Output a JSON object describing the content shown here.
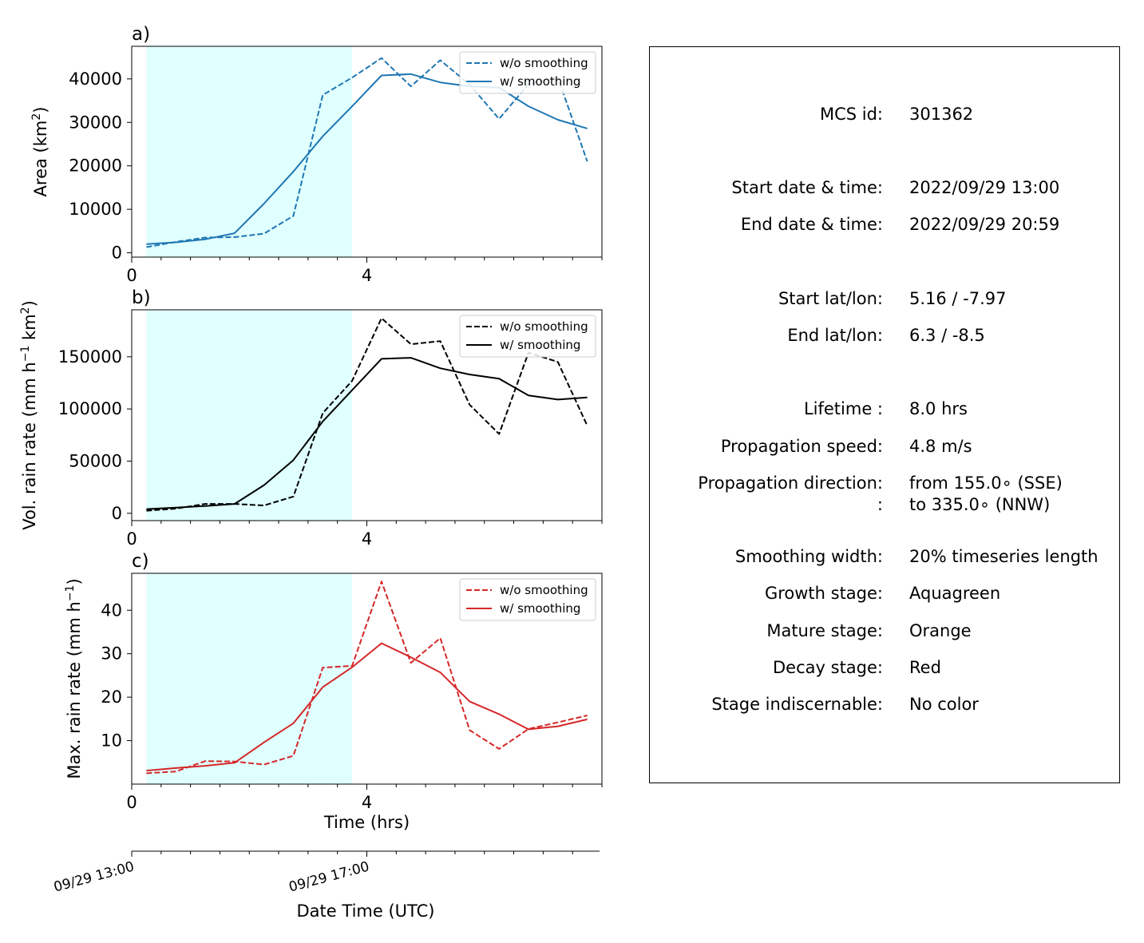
{
  "figure": {
    "panel_labels": [
      "a)",
      "b)",
      "c)"
    ],
    "time_axis_label": "Time (hrs)",
    "datetime_axis": {
      "label": "Date Time (UTC)",
      "tick_labels": [
        "09/29 13:00",
        "09/29 17:00"
      ]
    }
  },
  "colors": {
    "growth_shade": "#e0ffff",
    "area_series": "#1f77b4",
    "volume_series": "#000000",
    "max_series": "#d62728"
  },
  "chart_data": [
    {
      "type": "line",
      "panel": "a)",
      "ylabel": "Area  (km²)",
      "xlim": [
        0,
        8
      ],
      "ylim": [
        -1000,
        47500
      ],
      "x_ticks": [
        0,
        4
      ],
      "y_ticks": [
        0,
        10000,
        20000,
        30000,
        40000
      ],
      "shaded_x_range": [
        0.25,
        3.75
      ],
      "legend": "top-right",
      "series": [
        {
          "name": "w/o smoothing",
          "style": "dashed",
          "x": [
            0.25,
            0.75,
            1.25,
            1.75,
            2.25,
            2.75,
            3.25,
            3.75,
            4.25,
            4.75,
            5.25,
            5.75,
            6.25,
            6.75,
            7.25,
            7.75
          ],
          "y": [
            1300,
            2500,
            3500,
            3600,
            4400,
            8500,
            36300,
            40300,
            44800,
            38300,
            44300,
            38700,
            30800,
            38800,
            40300,
            21000
          ]
        },
        {
          "name": "w/ smoothing",
          "style": "solid",
          "x": [
            0.25,
            0.75,
            1.25,
            1.75,
            2.25,
            2.75,
            3.25,
            3.75,
            4.25,
            4.75,
            5.25,
            5.75,
            6.25,
            6.75,
            7.25,
            7.75
          ],
          "y": [
            2000,
            2400,
            3100,
            4500,
            11300,
            18700,
            26800,
            33700,
            40800,
            41100,
            39200,
            38300,
            38000,
            33700,
            30600,
            28600
          ]
        }
      ]
    },
    {
      "type": "line",
      "panel": "b)",
      "ylabel": "Vol. rain rate (mm h⁻¹ km²)",
      "xlim": [
        0,
        8
      ],
      "ylim": [
        -7000,
        195000
      ],
      "x_ticks": [
        0,
        4
      ],
      "y_ticks": [
        0,
        50000,
        100000,
        150000
      ],
      "shaded_x_range": [
        0.25,
        3.75
      ],
      "legend": "top-right",
      "series": [
        {
          "name": "w/o smoothing",
          "style": "dashed",
          "x": [
            0.25,
            0.75,
            1.25,
            1.75,
            2.25,
            2.75,
            3.25,
            3.75,
            4.25,
            4.75,
            5.25,
            5.75,
            6.25,
            6.75,
            7.25,
            7.75
          ],
          "y": [
            2500,
            4500,
            9000,
            9000,
            7500,
            16000,
            96000,
            127000,
            187000,
            162000,
            165000,
            104000,
            76000,
            154000,
            145000,
            84000
          ]
        },
        {
          "name": "w/ smoothing",
          "style": "solid",
          "x": [
            0.25,
            0.75,
            1.25,
            1.75,
            2.25,
            2.75,
            3.25,
            3.75,
            4.25,
            4.75,
            5.25,
            5.75,
            6.25,
            6.75,
            7.25,
            7.75
          ],
          "y": [
            4000,
            5500,
            7000,
            9000,
            27000,
            51000,
            88000,
            118000,
            148000,
            149000,
            139000,
            133000,
            129000,
            113000,
            109000,
            111000
          ]
        }
      ]
    },
    {
      "type": "line",
      "panel": "c)",
      "ylabel": "Max. rain rate  (mm h⁻¹)",
      "xlim": [
        0,
        8
      ],
      "ylim": [
        0,
        48.5
      ],
      "x_ticks": [
        0,
        4
      ],
      "y_ticks": [
        10,
        20,
        30,
        40
      ],
      "shaded_x_range": [
        0.25,
        3.75
      ],
      "legend": "top-right",
      "series": [
        {
          "name": "w/o smoothing",
          "style": "dashed",
          "x": [
            0.25,
            0.75,
            1.25,
            1.75,
            2.25,
            2.75,
            3.25,
            3.75,
            4.25,
            4.75,
            5.25,
            5.75,
            6.25,
            6.75,
            7.25,
            7.75
          ],
          "y": [
            2.5,
            2.9,
            5.3,
            5.2,
            4.5,
            6.5,
            26.8,
            27.2,
            46.6,
            27.9,
            33.6,
            12.4,
            8.1,
            12.7,
            14.2,
            15.8
          ]
        },
        {
          "name": "w/ smoothing",
          "style": "solid",
          "x": [
            0.25,
            0.75,
            1.25,
            1.75,
            2.25,
            2.75,
            3.25,
            3.75,
            4.25,
            4.75,
            5.25,
            5.75,
            6.25,
            6.75,
            7.25,
            7.75
          ],
          "y": [
            3.1,
            3.7,
            4.2,
            4.9,
            9.6,
            14.0,
            22.3,
            26.9,
            32.4,
            29.2,
            25.7,
            19.0,
            16.1,
            12.6,
            13.3,
            14.9
          ]
        }
      ]
    }
  ],
  "info": {
    "rows": [
      {
        "label": "MCS id:",
        "value": "301362"
      },
      {
        "label": "Start date & time:",
        "value": "2022/09/29 13:00"
      },
      {
        "label": "End date & time:",
        "value": "2022/09/29 20:59"
      },
      {
        "label": "Start lat/lon:",
        "value": "5.16 / -7.97"
      },
      {
        "label": "End lat/lon:",
        "value": "6.3 / -8.5"
      },
      {
        "label": "Lifetime :",
        "value": "8.0 hrs"
      },
      {
        "label": "Propagation speed:",
        "value": "4.8 m/s"
      },
      {
        "label": "Propagation direction:",
        "value": "from 155.0∘ (SSE)"
      },
      {
        "label": ":",
        "value": "to   335.0∘ (NNW)"
      },
      {
        "label": "Smoothing width:",
        "value": "20% timeseries length"
      },
      {
        "label": "Growth stage:",
        "value": "Aquagreen"
      },
      {
        "label": "Mature stage:",
        "value": "Orange"
      },
      {
        "label": "Decay stage:",
        "value": "Red"
      },
      {
        "label": "Stage indiscernable:",
        "value": "No color"
      }
    ]
  }
}
